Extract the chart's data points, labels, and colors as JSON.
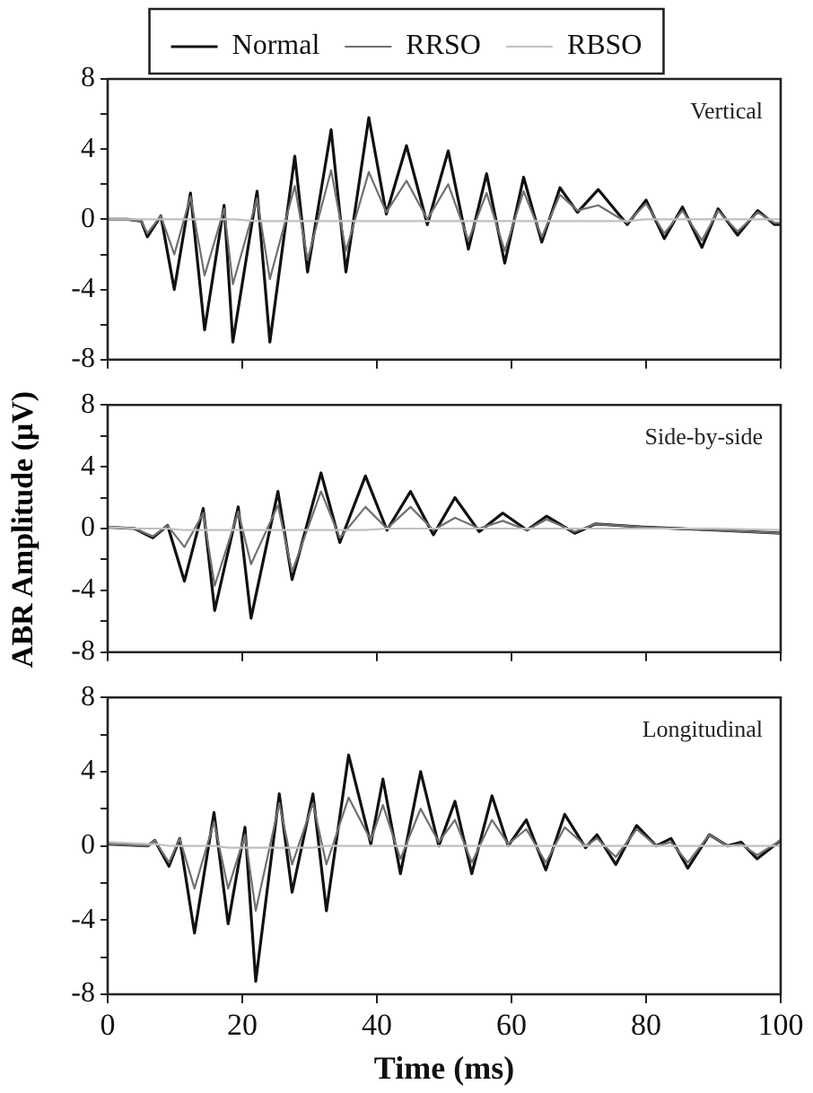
{
  "chart_data": [
    {
      "type": "line",
      "annotations": [
        "Vertical"
      ],
      "legend": "top",
      "tick_labels": "y",
      "grid": false,
      "marker": "none",
      "line_style": "solid",
      "xlim": [
        0,
        100
      ],
      "xticks": [
        0,
        20,
        40,
        60,
        80,
        100
      ],
      "ylim": [
        -8,
        8
      ],
      "yticks": [
        -8,
        {
          "value": -6,
          "label": null
        },
        -4,
        {
          "value": -2,
          "label": null
        },
        0,
        {
          "value": 2,
          "label": null
        },
        4,
        {
          "value": 6,
          "label": null
        },
        8
      ],
      "x": [
        0,
        3,
        5,
        5.9,
        7.9,
        9.9,
        12.3,
        14.4,
        17.3,
        18.6,
        22.2,
        24.1,
        27.8,
        29.7,
        33.2,
        35.4,
        38.8,
        41.4,
        44.4,
        47.5,
        50.6,
        53.6,
        56.3,
        59,
        61.8,
        64.5,
        67.2,
        69.8,
        72.9,
        77.2,
        80,
        82.7,
        85.4,
        88.3,
        90.7,
        93.6,
        96.6,
        99.1,
        100
      ],
      "series": [
        {
          "name": "Normal",
          "color": "#111111",
          "values": [
            0,
            0,
            -0.1,
            -1,
            0.2,
            -4,
            1.5,
            -6.3,
            0.8,
            -7,
            1.6,
            -7,
            3.6,
            -3,
            5.1,
            -3,
            5.8,
            0.3,
            4.2,
            -0.3,
            3.9,
            -1.7,
            2.6,
            -2.5,
            2.4,
            -1.3,
            1.8,
            0.4,
            1.7,
            -0.3,
            1.1,
            -1.1,
            0.7,
            -1.6,
            0.6,
            -0.9,
            0.5,
            -0.3,
            -0.3
          ]
        },
        {
          "name": "RRSO",
          "color": "#707070",
          "values": [
            0,
            0,
            -0.1,
            -0.8,
            0.2,
            -2,
            1.3,
            -3.2,
            0.6,
            -3.7,
            1.2,
            -3.4,
            1.9,
            -2.3,
            2.8,
            -1.8,
            2.7,
            0.4,
            2.2,
            0,
            2,
            -1.2,
            1.5,
            -1.8,
            1.6,
            -1,
            1.4,
            0.5,
            0.8,
            -0.2,
            0.9,
            -0.8,
            0.5,
            -1.2,
            0.5,
            -0.7,
            0.4,
            -0.2,
            -0.2
          ]
        },
        {
          "name": "RBSO",
          "color": "#c0c0c0",
          "values": [
            0,
            0,
            0,
            0,
            0,
            0,
            0,
            0,
            0,
            0,
            -0.1,
            -0.1,
            -0.1,
            -0.1,
            -0.1,
            -0.1,
            -0.1,
            -0.1,
            -0.1,
            -0.1,
            -0.1,
            -0.1,
            -0.1,
            -0.1,
            -0.1,
            -0.1,
            -0.1,
            -0.1,
            -0.1,
            -0.1,
            0,
            0,
            0,
            0,
            0,
            0,
            0,
            0,
            0
          ]
        }
      ]
    },
    {
      "type": "line",
      "annotations": [
        "Side-by-side"
      ],
      "ylabel": "ABR Amplitude (μV)",
      "tick_labels": "y",
      "grid": false,
      "marker": "none",
      "line_style": "solid",
      "xlim": [
        0,
        100
      ],
      "xticks": [
        0,
        20,
        40,
        60,
        80,
        100
      ],
      "ylim": [
        -8,
        8
      ],
      "yticks": [
        -8,
        {
          "value": -6,
          "label": null
        },
        -4,
        {
          "value": -2,
          "label": null
        },
        0,
        {
          "value": 2,
          "label": null
        },
        4,
        {
          "value": 6,
          "label": null
        },
        8
      ],
      "x": [
        0,
        4,
        6.7,
        8.9,
        11.4,
        14.2,
        15.9,
        19.4,
        21.3,
        25.3,
        27.4,
        31.7,
        34.5,
        38.3,
        41.5,
        45,
        48.4,
        51.6,
        55.2,
        58.7,
        62.3,
        65.2,
        69.4,
        72.5,
        79.6,
        90.2,
        100
      ],
      "series": [
        {
          "color": "#111111",
          "values": [
            0.1,
            0,
            -0.6,
            0.2,
            -3.4,
            1.3,
            -5.3,
            1.4,
            -5.8,
            2.4,
            -3.3,
            3.6,
            -0.9,
            3.4,
            -0.1,
            2.4,
            -0.4,
            2,
            -0.2,
            1,
            -0.1,
            0.8,
            -0.3,
            0.3,
            0.1,
            -0.1,
            -0.3
          ]
        },
        {
          "color": "#707070",
          "values": [
            0.1,
            0,
            -0.5,
            0.2,
            -1.2,
            1,
            -3.7,
            1.1,
            -2.3,
            1.5,
            -2.8,
            2.4,
            -0.6,
            1.4,
            0,
            1.4,
            -0.1,
            0.7,
            0,
            0.5,
            -0.1,
            0.6,
            -0.2,
            0.3,
            0.1,
            -0.1,
            -0.3
          ]
        },
        {
          "color": "#c0c0c0",
          "values": [
            0.1,
            0,
            0,
            0,
            -0.1,
            -0.1,
            -0.1,
            -0.1,
            -0.1,
            -0.1,
            -0.1,
            -0.1,
            -0.1,
            -0.1,
            0,
            0,
            0,
            0,
            0,
            0,
            0,
            0,
            0,
            0,
            0,
            0,
            -0.1
          ]
        }
      ]
    },
    {
      "type": "line",
      "annotations": [
        "Longitudinal"
      ],
      "xlabel": "Time (ms)",
      "grid": false,
      "marker": "none",
      "line_style": "solid",
      "xlim": [
        0,
        100
      ],
      "xticks": [
        0,
        20,
        40,
        60,
        80,
        100
      ],
      "ylim": [
        -8,
        8
      ],
      "yticks": [
        -8,
        {
          "value": -6,
          "label": null
        },
        -4,
        {
          "value": -2,
          "label": null
        },
        0,
        {
          "value": 2,
          "label": null
        },
        4,
        {
          "value": 6,
          "label": null
        },
        8
      ],
      "x": [
        0,
        6,
        7,
        9.1,
        10.7,
        12.9,
        15.8,
        17.9,
        20.4,
        22,
        25.5,
        27.4,
        30.5,
        32.5,
        35.8,
        39.1,
        40.9,
        43.5,
        46.5,
        49.2,
        51.6,
        54.1,
        57.1,
        59.5,
        62.2,
        65.1,
        67.9,
        71,
        72.7,
        75.5,
        78.6,
        81.5,
        83.7,
        86.2,
        89.4,
        92.1,
        94.1,
        96.5,
        100
      ],
      "series": [
        {
          "color": "#111111",
          "values": [
            0.1,
            0,
            0.3,
            -1.1,
            0.4,
            -4.7,
            1.8,
            -4.2,
            1,
            -7.3,
            2.8,
            -2.5,
            2.8,
            -3.5,
            4.9,
            0.1,
            3.6,
            -1.5,
            4,
            0,
            2.4,
            -1.5,
            2.7,
            0,
            1.4,
            -1.3,
            1.7,
            -0.1,
            0.6,
            -1,
            1.1,
            0,
            0.4,
            -1.2,
            0.6,
            0,
            0.2,
            -0.7,
            0.3
          ]
        },
        {
          "color": "#707070",
          "values": [
            0.1,
            0,
            0.3,
            -0.9,
            0.4,
            -2.3,
            1.3,
            -2.3,
            0.6,
            -3.5,
            2.3,
            -1,
            2.3,
            -1,
            2.6,
            0.3,
            2.2,
            -0.7,
            2,
            0.2,
            1.4,
            -0.9,
            1.4,
            0.1,
            0.9,
            -0.9,
            1,
            0,
            0.4,
            -0.6,
            0.9,
            0,
            0.2,
            -0.9,
            0.6,
            0,
            0.1,
            -0.5,
            0.3
          ]
        },
        {
          "color": "#c0c0c0",
          "values": [
            0.2,
            0.1,
            0.1,
            0,
            0,
            0,
            0,
            -0.1,
            -0.1,
            -0.1,
            -0.1,
            -0.1,
            -0.1,
            0,
            0,
            0,
            0,
            0,
            0,
            0,
            0,
            0,
            0,
            0,
            0,
            0,
            0,
            0,
            0,
            0,
            0,
            0,
            0,
            0,
            0,
            0,
            0,
            0,
            0
          ]
        }
      ]
    }
  ]
}
